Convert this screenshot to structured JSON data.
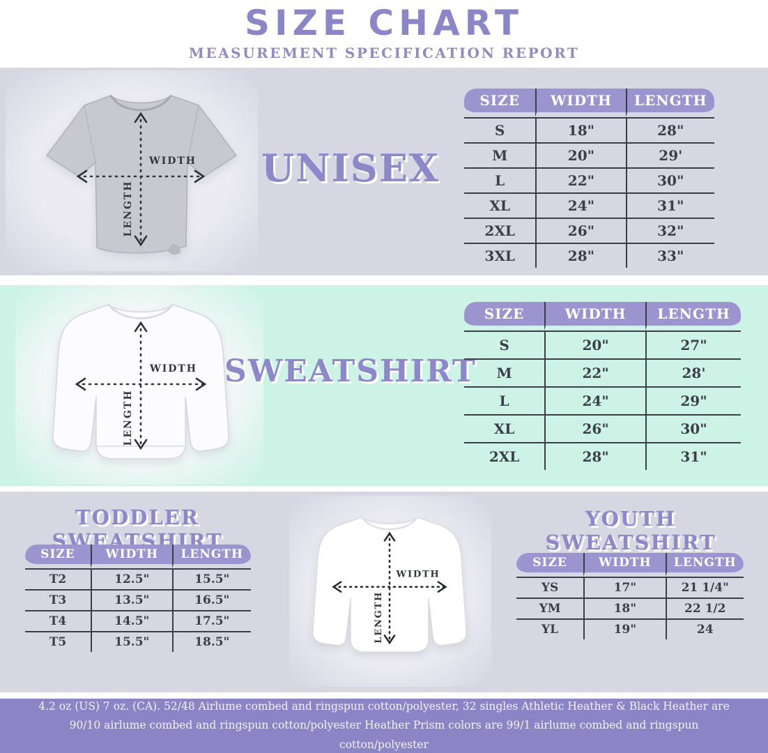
{
  "header": {
    "title": "SIZE CHART",
    "subtitle": "MEASUREMENT SPECIFICATION REPORT"
  },
  "measure_labels": {
    "width": "WIDTH",
    "length": "LENGTH"
  },
  "unisex": {
    "label": "UNISEX",
    "headers": [
      "SIZE",
      "WIDTH",
      "LENGTH"
    ],
    "rows": [
      [
        "S",
        "18\"",
        "28\""
      ],
      [
        "M",
        "20\"",
        "29'"
      ],
      [
        "L",
        "22\"",
        "30\""
      ],
      [
        "XL",
        "24\"",
        "31\""
      ],
      [
        "2XL",
        "26\"",
        "32\""
      ],
      [
        "3XL",
        "28\"",
        "33\""
      ]
    ]
  },
  "sweatshirt": {
    "label": "SWEATSHIRT",
    "headers": [
      "SIZE",
      "WIDTH",
      "LENGTH"
    ],
    "rows": [
      [
        "S",
        "20\"",
        "27\""
      ],
      [
        "M",
        "22\"",
        "28'"
      ],
      [
        "L",
        "24\"",
        "29\""
      ],
      [
        "XL",
        "26\"",
        "30\""
      ],
      [
        "2XL",
        "28\"",
        "31\""
      ]
    ]
  },
  "toddler": {
    "label": "TODDLER SWEATSHIRT",
    "headers": [
      "SIZE",
      "WIDTH",
      "LENGTH"
    ],
    "rows": [
      [
        "T2",
        "12.5\"",
        "15.5\""
      ],
      [
        "T3",
        "13.5\"",
        "16.5\""
      ],
      [
        "T4",
        "14.5\"",
        "17.5\""
      ],
      [
        "T5",
        "15.5\"",
        "18.5\""
      ]
    ]
  },
  "youth": {
    "label": "YOUTH SWEATSHIRT",
    "headers": [
      "SIZE",
      "WIDTH",
      "LENGTH"
    ],
    "rows": [
      [
        "YS",
        "17\"",
        "21 1/4\""
      ],
      [
        "YM",
        "18\"",
        "22 1/2"
      ],
      [
        "YL",
        "19\"",
        "24"
      ]
    ]
  },
  "footer": {
    "text": "4.2 oz (US) 7 oz. (CA). 52/48 Airlume combed and ringspun cotton/polyester, 32 singles Athletic Heather & Black Heather are 90/10 airlume combed and ringspun cotton/polyester Heather Prism colors are 99/1 airlume combed and ringspun cotton/polyester"
  },
  "colors": {
    "accent_purple": "#8a86c8",
    "lavender_background": "#d7d7e4",
    "mint_background": "#cdf3e7",
    "table_header_pill": "#9b94cf",
    "footer_background": "#8b85c6",
    "table_ink": "#3b3f49"
  }
}
